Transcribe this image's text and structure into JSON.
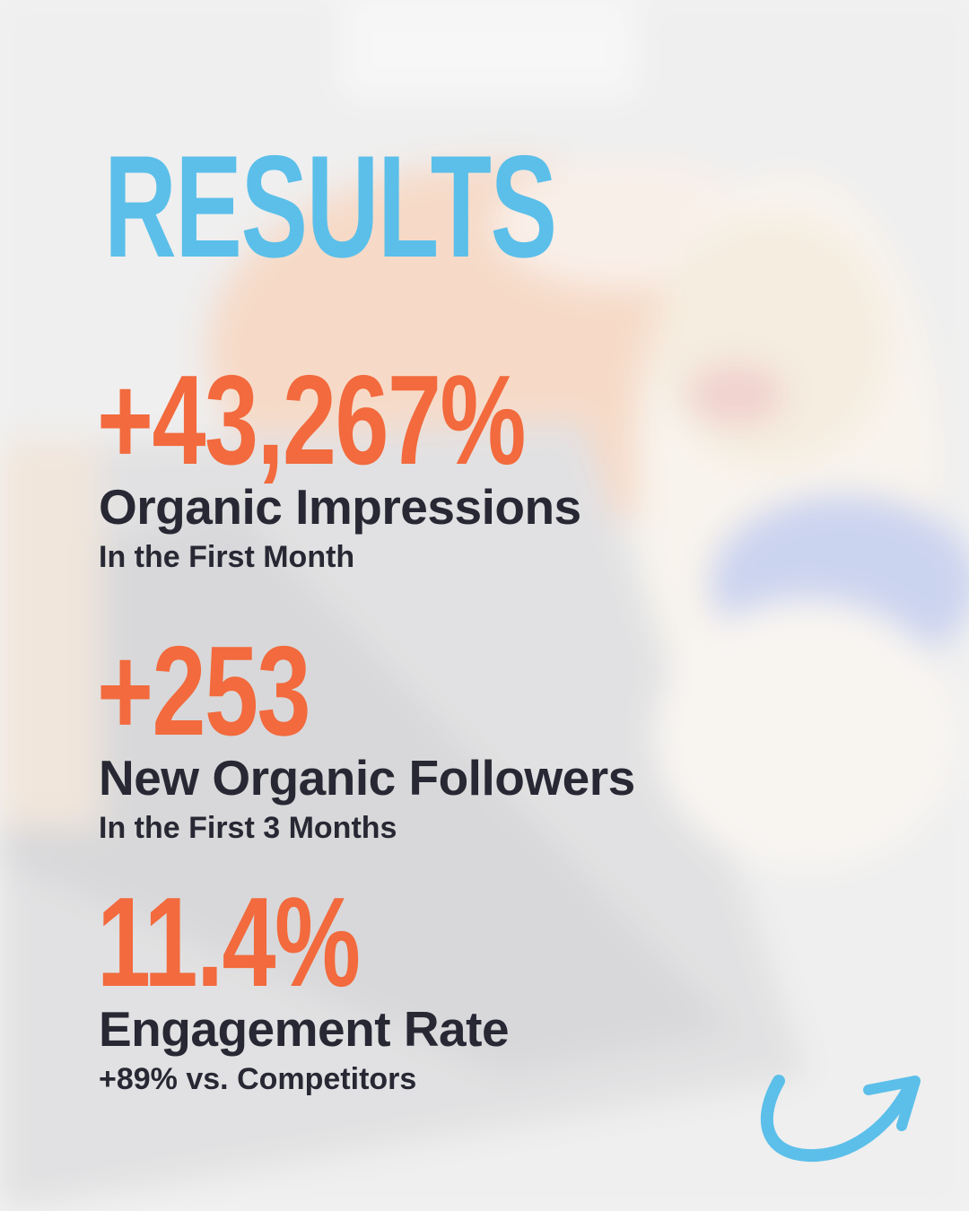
{
  "title": "RESULTS",
  "stats": [
    {
      "value": "+43,267%",
      "label": "Organic Impressions",
      "sublabel": "In the First Month"
    },
    {
      "value": "+253",
      "label": "New Organic Followers",
      "sublabel": "In the First 3 Months"
    },
    {
      "value": "11.4%",
      "label": "Engagement Rate",
      "sublabel": "+89% vs. Competitors"
    }
  ]
}
